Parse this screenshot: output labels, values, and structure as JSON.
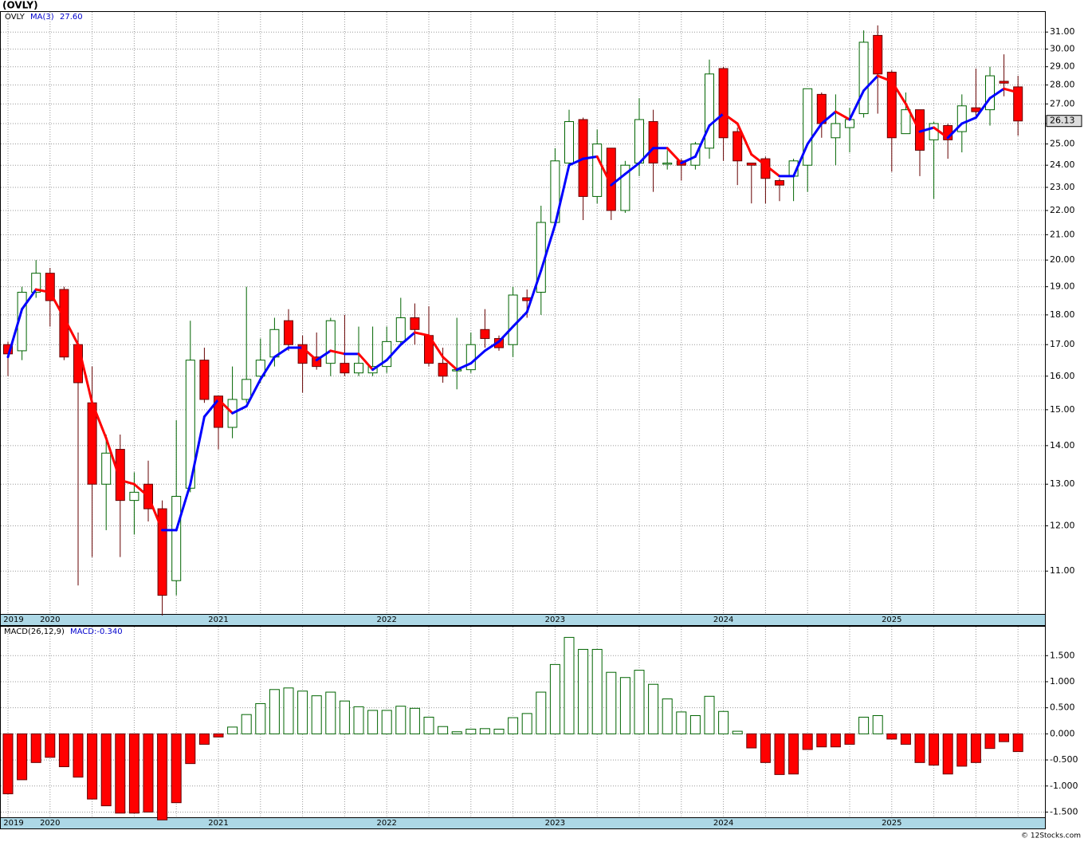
{
  "chart_data": [
    {
      "type": "candlestick",
      "title": "(OVLY)",
      "symbol": "OVLY",
      "categories": [
        "2019",
        null,
        null,
        "2020",
        null,
        null,
        null,
        null,
        null,
        null,
        null,
        null,
        null,
        null,
        null,
        "2021",
        null,
        null,
        null,
        null,
        null,
        null,
        null,
        null,
        null,
        null,
        null,
        "2022",
        null,
        null,
        null,
        null,
        null,
        null,
        null,
        null,
        null,
        null,
        null,
        "2023",
        null,
        null,
        null,
        null,
        null,
        null,
        null,
        null,
        null,
        null,
        null,
        "2024",
        null,
        null,
        null,
        null,
        null,
        null,
        null,
        null,
        null,
        null,
        null,
        "2025",
        null,
        null,
        null,
        null,
        null,
        null,
        null,
        null,
        null
      ],
      "candles": {
        "open": [
          17.0,
          16.8,
          18.8,
          19.5,
          18.9,
          17.0,
          15.2,
          13.0,
          13.9,
          12.6,
          13.0,
          12.4,
          10.8,
          12.9,
          16.5,
          15.4,
          14.5,
          15.3,
          16.0,
          16.6,
          17.8,
          17.0,
          16.6,
          16.4,
          16.4,
          16.1,
          16.1,
          16.3,
          17.1,
          17.9,
          17.3,
          16.4,
          16.2,
          16.2,
          17.5,
          17.2,
          17.0,
          18.6,
          18.8,
          21.5,
          24.1,
          26.2,
          22.6,
          24.8,
          22.0,
          24.1,
          26.1,
          24.1,
          24.2,
          24.0,
          24.8,
          28.9,
          25.6,
          24.1,
          24.3,
          23.3,
          23.5,
          24.0,
          27.5,
          25.3,
          25.8,
          26.5,
          30.8,
          28.7,
          25.5,
          26.7,
          25.2,
          25.9,
          25.6,
          26.8,
          26.7,
          28.2,
          27.9
        ],
        "high": [
          17.1,
          19.0,
          20.0,
          19.7,
          19.0,
          17.4,
          16.3,
          14.3,
          14.3,
          13.3,
          13.6,
          12.6,
          14.7,
          17.8,
          16.9,
          15.4,
          16.3,
          19.0,
          17.2,
          17.9,
          18.2,
          17.3,
          17.4,
          17.9,
          18.0,
          17.6,
          17.6,
          17.6,
          18.6,
          18.4,
          18.3,
          16.9,
          17.9,
          17.4,
          18.2,
          17.3,
          19.0,
          18.9,
          22.2,
          24.8,
          26.7,
          26.3,
          25.7,
          24.8,
          24.2,
          27.3,
          26.7,
          24.7,
          24.3,
          25.1,
          29.4,
          29.0,
          25.8,
          24.1,
          24.4,
          23.4,
          24.3,
          27.8,
          27.6,
          27.5,
          26.8,
          31.1,
          31.4,
          28.8,
          27.6,
          26.7,
          26.1,
          26.0,
          27.5,
          28.9,
          29.0,
          29.7,
          28.5
        ],
        "low": [
          16.0,
          16.5,
          18.6,
          17.6,
          16.5,
          10.7,
          11.3,
          11.9,
          11.3,
          11.8,
          12.1,
          10.1,
          10.5,
          12.8,
          15.2,
          13.9,
          14.2,
          15.2,
          15.8,
          16.3,
          16.8,
          15.5,
          16.2,
          16.0,
          16.0,
          16.0,
          16.0,
          16.1,
          17.0,
          17.0,
          16.3,
          15.8,
          15.6,
          16.1,
          16.9,
          16.8,
          16.6,
          17.9,
          18.0,
          21.5,
          24.0,
          21.6,
          22.3,
          21.6,
          21.9,
          23.5,
          22.8,
          23.8,
          23.3,
          23.8,
          24.3,
          24.2,
          23.1,
          22.3,
          22.3,
          22.4,
          22.4,
          22.8,
          25.3,
          24.0,
          24.6,
          26.3,
          26.5,
          23.7,
          25.5,
          23.5,
          22.5,
          24.3,
          24.6,
          26.4,
          25.9,
          27.4,
          25.4
        ],
        "close": [
          16.7,
          18.8,
          19.5,
          18.5,
          16.6,
          15.8,
          13.0,
          13.8,
          12.6,
          12.8,
          12.4,
          10.5,
          12.7,
          16.5,
          15.3,
          14.5,
          15.3,
          15.9,
          16.5,
          17.5,
          17.0,
          16.4,
          16.3,
          17.8,
          16.1,
          16.4,
          16.3,
          17.1,
          17.9,
          17.5,
          16.4,
          16.0,
          16.2,
          17.0,
          17.2,
          16.9,
          18.7,
          18.5,
          21.5,
          24.2,
          26.1,
          22.6,
          25.0,
          22.0,
          24.0,
          26.2,
          24.1,
          24.1,
          24.0,
          25.0,
          28.6,
          25.3,
          24.2,
          24.0,
          23.4,
          23.1,
          24.2,
          27.8,
          26.0,
          26.0,
          26.2,
          30.4,
          28.6,
          25.3,
          26.7,
          24.7,
          26.0,
          25.2,
          26.9,
          26.6,
          28.5,
          28.1,
          26.13
        ]
      },
      "up_color": "#006400",
      "down_color": "#ff0000",
      "ma": {
        "name": "MA(3)",
        "current_label": "27.60",
        "up_color": "#0000ff",
        "down_color": "#ff0000",
        "values": [
          16.6,
          18.2,
          18.9,
          18.8,
          17.9,
          17.0,
          15.2,
          14.2,
          13.1,
          13.0,
          12.7,
          11.9,
          11.9,
          13.0,
          14.8,
          15.3,
          14.9,
          15.1,
          15.9,
          16.6,
          16.9,
          16.9,
          16.5,
          16.8,
          16.7,
          16.7,
          16.2,
          16.5,
          17.0,
          17.4,
          17.3,
          16.6,
          16.2,
          16.4,
          16.8,
          17.1,
          17.6,
          18.1,
          19.6,
          21.4,
          24.0,
          24.3,
          24.4,
          23.1,
          23.6,
          24.1,
          24.8,
          24.8,
          24.1,
          24.4,
          25.9,
          26.5,
          26.0,
          24.5,
          24.0,
          23.5,
          23.5,
          25.0,
          26.0,
          26.6,
          26.2,
          27.7,
          28.5,
          28.2,
          27.0,
          25.6,
          25.8,
          25.3,
          26.0,
          26.3,
          27.3,
          27.8,
          27.6
        ]
      },
      "log_scale": true,
      "grid": true,
      "ylim": [
        10.13,
        32.27
      ],
      "yticks": [
        {
          "value": 11,
          "label": "11.00"
        },
        {
          "value": 12,
          "label": "12.00"
        },
        {
          "value": 13,
          "label": "13.00"
        },
        {
          "value": 14,
          "label": "14.00"
        },
        {
          "value": 15,
          "label": "15.00"
        },
        {
          "value": 16,
          "label": "16.00"
        },
        {
          "value": 17,
          "label": "17.00"
        },
        {
          "value": 18,
          "label": "18.00"
        },
        {
          "value": 19,
          "label": "19.00"
        },
        {
          "value": 20,
          "label": "20.00"
        },
        {
          "value": 21,
          "label": "21.00"
        },
        {
          "value": 22,
          "label": "22.00"
        },
        {
          "value": 23,
          "label": "23.00"
        },
        {
          "value": 24,
          "label": "24.00"
        },
        {
          "value": 25,
          "label": "25.00"
        },
        {
          "value": 26,
          "label": "26.00"
        },
        {
          "value": 27,
          "label": "27.00"
        },
        {
          "value": 28,
          "label": "28.00"
        },
        {
          "value": 29,
          "label": "29.00"
        },
        {
          "value": 30,
          "label": "30.00"
        },
        {
          "value": 31,
          "label": "31.00"
        }
      ]
    },
    {
      "type": "bar",
      "title": "MACD(26,12,9)",
      "current_label": "MACD:-0.340",
      "categories": [
        "2019",
        null,
        null,
        "2020",
        null,
        null,
        null,
        null,
        null,
        null,
        null,
        null,
        null,
        null,
        null,
        "2021",
        null,
        null,
        null,
        null,
        null,
        null,
        null,
        null,
        null,
        null,
        null,
        "2022",
        null,
        null,
        null,
        null,
        null,
        null,
        null,
        null,
        null,
        null,
        null,
        "2023",
        null,
        null,
        null,
        null,
        null,
        null,
        null,
        null,
        null,
        null,
        null,
        "2024",
        null,
        null,
        null,
        null,
        null,
        null,
        null,
        null,
        null,
        null,
        null,
        "2025",
        null,
        null,
        null,
        null,
        null,
        null,
        null,
        null,
        null
      ],
      "values": [
        -1.15,
        -0.88,
        -0.55,
        -0.45,
        -0.63,
        -0.83,
        -1.25,
        -1.38,
        -1.52,
        -1.52,
        -1.5,
        -1.65,
        -1.32,
        -0.57,
        -0.2,
        -0.06,
        0.13,
        0.37,
        0.58,
        0.85,
        0.88,
        0.82,
        0.73,
        0.8,
        0.63,
        0.52,
        0.45,
        0.45,
        0.53,
        0.49,
        0.32,
        0.14,
        0.04,
        0.09,
        0.1,
        0.09,
        0.31,
        0.39,
        0.8,
        1.33,
        1.85,
        1.62,
        1.62,
        1.18,
        1.08,
        1.22,
        0.95,
        0.67,
        0.42,
        0.35,
        0.72,
        0.43,
        0.05,
        -0.27,
        -0.55,
        -0.78,
        -0.77,
        -0.3,
        -0.25,
        -0.25,
        -0.2,
        0.32,
        0.35,
        -0.1,
        -0.2,
        -0.55,
        -0.6,
        -0.77,
        -0.62,
        -0.55,
        -0.28,
        -0.15,
        -0.34
      ],
      "up_color": "#006400",
      "down_color": "#ff0000",
      "grid": true,
      "ylim": [
        -1.6,
        2.07
      ],
      "yticks": [
        {
          "value": 1.5,
          "label": "1.500"
        },
        {
          "value": 1,
          "label": "1.000"
        },
        {
          "value": 0.5,
          "label": "0.500"
        },
        {
          "value": 0,
          "label": "0.000"
        },
        {
          "value": -0.5,
          "label": "-0.500"
        },
        {
          "value": -1,
          "label": "-1.000"
        },
        {
          "value": -1.5,
          "label": "-1.500"
        }
      ]
    }
  ],
  "footer": "© 12Stocks.com"
}
